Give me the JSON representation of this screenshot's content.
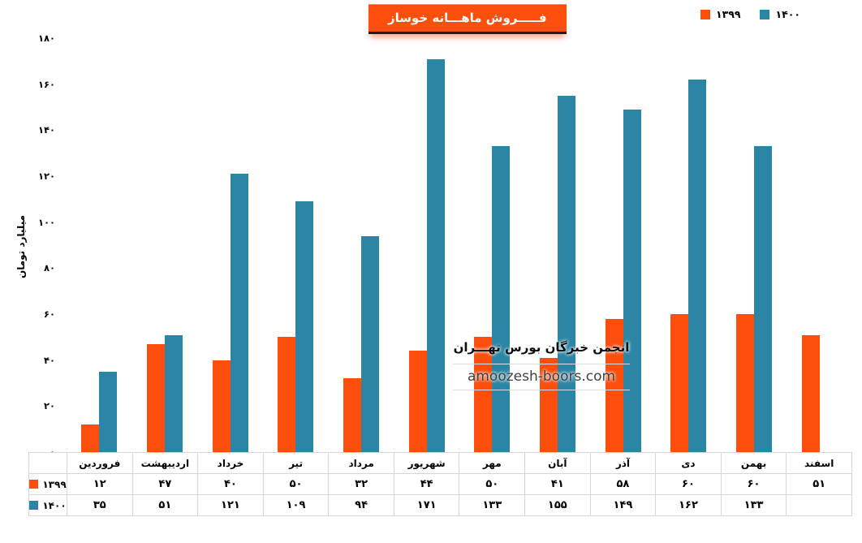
{
  "title": "فـــــروش ماهـــانه خوساز",
  "colors": {
    "series_1399": "#FC4E0D",
    "series_1400": "#2B86A5",
    "title_bg": "#FC4E0D",
    "table_border": "#d6d6d6"
  },
  "legend": {
    "items": [
      {
        "label": "۱۳۹۹",
        "color": "#FC4E0D"
      },
      {
        "label": "۱۴۰۰",
        "color": "#2B86A5"
      }
    ]
  },
  "watermark": {
    "line1": "انجمن خبرگان بورس تهـــران",
    "line2": "amoozesh-boors.com"
  },
  "chart_data": {
    "type": "bar",
    "title": "فـــــروش ماهـــانه خوساز",
    "xlabel": "",
    "ylabel": "میلیارد تومان",
    "ylim": [
      0,
      180
    ],
    "yticks": [
      0,
      20,
      40,
      60,
      80,
      100,
      120,
      140,
      160,
      180
    ],
    "ytick_labels": [
      "۰",
      "۲۰",
      "۴۰",
      "۶۰",
      "۸۰",
      "۱۰۰",
      "۱۲۰",
      "۱۴۰",
      "۱۶۰",
      "۱۸۰"
    ],
    "grid": false,
    "legend_position": "top-right",
    "categories": [
      "فروردین",
      "اردیبهشت",
      "خرداد",
      "تیر",
      "مرداد",
      "شهریور",
      "مهر",
      "آبان",
      "آذر",
      "دی",
      "بهمن",
      "اسفند"
    ],
    "series": [
      {
        "name": "۱۳۹۹",
        "year": 1399,
        "color": "#FC4E0D",
        "values": [
          12,
          47,
          40,
          50,
          32,
          44,
          50,
          41,
          58,
          60,
          60,
          51
        ],
        "value_labels": [
          "۱۲",
          "۴۷",
          "۴۰",
          "۵۰",
          "۳۲",
          "۴۴",
          "۵۰",
          "۴۱",
          "۵۸",
          "۶۰",
          "۶۰",
          "۵۱"
        ]
      },
      {
        "name": "۱۴۰۰",
        "year": 1400,
        "color": "#2B86A5",
        "values": [
          35,
          51,
          121,
          109,
          94,
          171,
          133,
          155,
          149,
          162,
          133,
          null
        ],
        "value_labels": [
          "۳۵",
          "۵۱",
          "۱۲۱",
          "۱۰۹",
          "۹۴",
          "۱۷۱",
          "۱۳۳",
          "۱۵۵",
          "۱۴۹",
          "۱۶۲",
          "۱۳۳",
          ""
        ]
      }
    ],
    "table_shown": true
  }
}
